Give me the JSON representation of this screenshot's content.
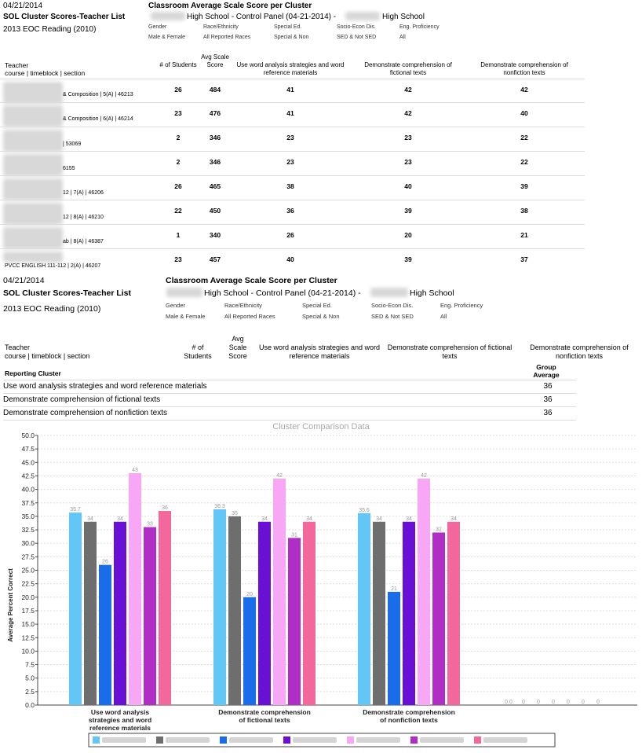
{
  "report1": {
    "date": "04/21/2014",
    "report_name": "SOL Cluster Scores-Teacher List",
    "test_name": "2013 EOC Reading (2010)",
    "heading": "Classroom Average Scale Score per Cluster",
    "school_line_a": "High School - Control Panel (04-21-2014) -",
    "school_line_b": "High School",
    "filters": [
      {
        "label": "Gender",
        "value": "Male & Female"
      },
      {
        "label": "Race/Ethnicity",
        "value": "All Reported Races"
      },
      {
        "label": "Special Ed.",
        "value": "Special & Non"
      },
      {
        "label": "Socio-Econ Dis.",
        "value": "SED & Not SED"
      },
      {
        "label": "Eng. Proficiency",
        "value": "All"
      }
    ],
    "columns": {
      "teacher": "Teacher",
      "teacher_sub": "course | timeblock | section",
      "students": "# of Students",
      "avg": "Avg Scale Score",
      "c1": "Use word analysis strategies and word reference materials",
      "c2": "Demonstrate comprehension of fictional texts",
      "c3": "Demonstrate comprehension of nonfiction texts"
    },
    "rows": [
      {
        "course": "& Composition | 5(A) | 46213",
        "students": "26",
        "avg": "484",
        "c1": "41",
        "c2": "42",
        "c3": "42"
      },
      {
        "course": "& Composition | 6(A) | 46214",
        "students": "23",
        "avg": "476",
        "c1": "41",
        "c2": "42",
        "c3": "40"
      },
      {
        "course": "| 53069",
        "students": "2",
        "avg": "346",
        "c1": "23",
        "c2": "23",
        "c3": "22"
      },
      {
        "course": "6155",
        "students": "2",
        "avg": "346",
        "c1": "23",
        "c2": "23",
        "c3": "22"
      },
      {
        "course": "12 | 7(A) | 46206",
        "students": "26",
        "avg": "465",
        "c1": "38",
        "c2": "40",
        "c3": "39"
      },
      {
        "course": "12 | 8(A) | 46210",
        "students": "22",
        "avg": "450",
        "c1": "36",
        "c2": "39",
        "c3": "38"
      },
      {
        "course": "ab | 8(A) | 46387",
        "students": "1",
        "avg": "340",
        "c1": "26",
        "c2": "20",
        "c3": "21"
      },
      {
        "course": "PVCC ENGLISH 111-112 | 2(A) | 46207",
        "students": "23",
        "avg": "457",
        "c1": "40",
        "c2": "39",
        "c3": "37"
      }
    ]
  },
  "report2": {
    "date": "04/21/2014",
    "report_name": "SOL Cluster Scores-Teacher List",
    "test_name": "2013 EOC Reading (2010)",
    "heading": "Classroom Average Scale Score per Cluster",
    "school_line_a": "High School - Control Panel (04-21-2014) -",
    "school_line_b": "High School",
    "filters": [
      {
        "label": "Gender",
        "value": "Male & Female"
      },
      {
        "label": "Race/Ethnicity",
        "value": "All Reported Races"
      },
      {
        "label": "Special Ed.",
        "value": "Special & Non"
      },
      {
        "label": "Socio-Econ Dis.",
        "value": "SED & Not SED"
      },
      {
        "label": "Eng. Proficiency",
        "value": "All"
      }
    ],
    "columns": {
      "teacher": "Teacher",
      "teacher_sub": "course | timeblock | section",
      "students": "# of Students",
      "avg": "Avg Scale Score",
      "c1": "Use word analysis strategies and word reference materials",
      "c2": "Demonstrate comprehension of fictional texts",
      "c3": "Demonstrate comprehension of nonfiction texts"
    }
  },
  "cluster_table": {
    "header_label": "Reporting Cluster",
    "header_value": "Group Average",
    "rows": [
      {
        "label": "Use word analysis strategies and word reference materials",
        "value": "36"
      },
      {
        "label": "Demonstrate comprehension of fictional texts",
        "value": "36"
      },
      {
        "label": "Demonstrate comprehension of nonfiction texts",
        "value": "36"
      }
    ]
  },
  "chart_data": {
    "type": "bar",
    "title": "Cluster Comparison Data",
    "ylabel": "Average Percent Correct",
    "xlabel": "",
    "ylim": [
      0,
      50
    ],
    "yticks": [
      "0.0",
      "2.5",
      "5.0",
      "7.5",
      "10.0",
      "12.5",
      "15.0",
      "17.5",
      "20.0",
      "22.5",
      "25.0",
      "27.5",
      "30.0",
      "32.5",
      "35.0",
      "37.5",
      "40.0",
      "42.5",
      "45.0",
      "47.5",
      "50.0"
    ],
    "grid": true,
    "categories": [
      "Use word analysis strategies and word reference materials",
      "Demonstrate comprehension of fictional texts",
      "Demonstrate comprehension of nonfiction texts",
      ""
    ],
    "series": [
      {
        "color": "#62c6f7",
        "values": [
          35.7,
          36.3,
          35.6,
          0.0
        ],
        "labels": [
          "35.7",
          "36.3",
          "35.6",
          "0.0"
        ]
      },
      {
        "color": "#6e6e6e",
        "values": [
          34,
          35,
          34,
          0
        ],
        "labels": [
          "34",
          "35",
          "34",
          "0"
        ]
      },
      {
        "color": "#1a6de8",
        "values": [
          26,
          20,
          21,
          0
        ],
        "labels": [
          "26",
          "20",
          "21",
          "0"
        ]
      },
      {
        "color": "#6a0fd6",
        "values": [
          34,
          34,
          34,
          0
        ],
        "labels": [
          "34",
          "34",
          "34",
          "0"
        ]
      },
      {
        "color": "#f8a6f6",
        "values": [
          43,
          42,
          42,
          0
        ],
        "labels": [
          "43",
          "42",
          "42",
          "0"
        ]
      },
      {
        "color": "#b02ec6",
        "values": [
          33,
          31,
          32,
          0
        ],
        "labels": [
          "33",
          "31",
          "32",
          "0"
        ]
      },
      {
        "color": "#f3689c",
        "values": [
          36,
          34,
          34,
          0
        ],
        "labels": [
          "36",
          "34",
          "34",
          "0"
        ]
      }
    ],
    "legend": "bottom"
  }
}
